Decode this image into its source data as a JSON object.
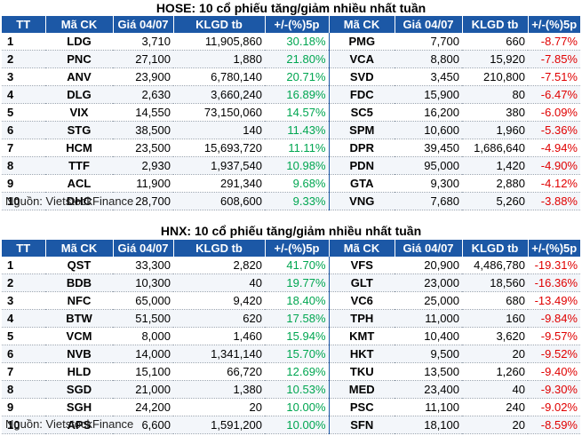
{
  "tables": [
    {
      "title": "HOSE: 10 cổ phiếu tăng/giảm nhiều nhất tuần",
      "headers": [
        "TT",
        "Mã CK",
        "Giá 04/07",
        "KLGD tb",
        "+/-(%)5p",
        "Mã CK",
        "Giá 04/07",
        "KLGD tb",
        "+/-(%)5p"
      ],
      "rows": [
        {
          "tt": "1",
          "code_up": "LDG",
          "price_up": "3,710",
          "vol_up": "11,905,860",
          "pct_up": "30.18%",
          "code_dn": "PMG",
          "price_dn": "7,700",
          "vol_dn": "660",
          "pct_dn": "-8.77%"
        },
        {
          "tt": "2",
          "code_up": "PNC",
          "price_up": "27,100",
          "vol_up": "1,880",
          "pct_up": "21.80%",
          "code_dn": "VCA",
          "price_dn": "8,800",
          "vol_dn": "15,920",
          "pct_dn": "-7.85%"
        },
        {
          "tt": "3",
          "code_up": "ANV",
          "price_up": "23,900",
          "vol_up": "6,780,140",
          "pct_up": "20.71%",
          "code_dn": "SVD",
          "price_dn": "3,450",
          "vol_dn": "210,800",
          "pct_dn": "-7.51%"
        },
        {
          "tt": "4",
          "code_up": "DLG",
          "price_up": "2,630",
          "vol_up": "3,660,240",
          "pct_up": "16.89%",
          "code_dn": "FDC",
          "price_dn": "15,900",
          "vol_dn": "80",
          "pct_dn": "-6.47%"
        },
        {
          "tt": "5",
          "code_up": "VIX",
          "price_up": "14,550",
          "vol_up": "73,150,060",
          "pct_up": "14.57%",
          "code_dn": "SC5",
          "price_dn": "16,200",
          "vol_dn": "380",
          "pct_dn": "-6.09%"
        },
        {
          "tt": "6",
          "code_up": "STG",
          "price_up": "38,500",
          "vol_up": "140",
          "pct_up": "11.43%",
          "code_dn": "SPM",
          "price_dn": "10,600",
          "vol_dn": "1,960",
          "pct_dn": "-5.36%"
        },
        {
          "tt": "7",
          "code_up": "HCM",
          "price_up": "23,500",
          "vol_up": "15,693,720",
          "pct_up": "11.11%",
          "code_dn": "DPR",
          "price_dn": "39,450",
          "vol_dn": "1,686,640",
          "pct_dn": "-4.94%"
        },
        {
          "tt": "8",
          "code_up": "TTF",
          "price_up": "2,930",
          "vol_up": "1,937,540",
          "pct_up": "10.98%",
          "code_dn": "PDN",
          "price_dn": "95,000",
          "vol_dn": "1,420",
          "pct_dn": "-4.90%"
        },
        {
          "tt": "9",
          "code_up": "ACL",
          "price_up": "11,900",
          "vol_up": "291,340",
          "pct_up": "9.68%",
          "code_dn": "GTA",
          "price_dn": "9,300",
          "vol_dn": "2,880",
          "pct_dn": "-4.12%"
        },
        {
          "tt": "10",
          "code_up": "DHC",
          "price_up": "28,700",
          "vol_up": "608,600",
          "pct_up": "9.33%",
          "code_dn": "VNG",
          "price_dn": "7,680",
          "vol_dn": "5,260",
          "pct_dn": "-3.88%"
        }
      ],
      "source": "Nguồn: VietstockFinance"
    },
    {
      "title": "HNX: 10 cổ phiếu tăng/giảm nhiều nhất tuần",
      "headers": [
        "TT",
        "Mã CK",
        "Giá 04/07",
        "KLGD tb",
        "+/-(%)5p",
        "Mã CK",
        "Giá 04/07",
        "KLGD tb",
        "+/-(%)5p"
      ],
      "rows": [
        {
          "tt": "1",
          "code_up": "QST",
          "price_up": "33,300",
          "vol_up": "2,820",
          "pct_up": "41.70%",
          "code_dn": "VFS",
          "price_dn": "20,900",
          "vol_dn": "4,486,780",
          "pct_dn": "-19.31%"
        },
        {
          "tt": "2",
          "code_up": "BDB",
          "price_up": "10,300",
          "vol_up": "40",
          "pct_up": "19.77%",
          "code_dn": "GLT",
          "price_dn": "23,000",
          "vol_dn": "18,560",
          "pct_dn": "-16.36%"
        },
        {
          "tt": "3",
          "code_up": "NFC",
          "price_up": "65,000",
          "vol_up": "9,420",
          "pct_up": "18.40%",
          "code_dn": "VC6",
          "price_dn": "25,000",
          "vol_dn": "680",
          "pct_dn": "-13.49%"
        },
        {
          "tt": "4",
          "code_up": "BTW",
          "price_up": "51,500",
          "vol_up": "620",
          "pct_up": "17.58%",
          "code_dn": "TPH",
          "price_dn": "11,000",
          "vol_dn": "160",
          "pct_dn": "-9.84%"
        },
        {
          "tt": "5",
          "code_up": "VCM",
          "price_up": "8,000",
          "vol_up": "1,460",
          "pct_up": "15.94%",
          "code_dn": "KMT",
          "price_dn": "10,400",
          "vol_dn": "3,620",
          "pct_dn": "-9.57%"
        },
        {
          "tt": "6",
          "code_up": "NVB",
          "price_up": "14,000",
          "vol_up": "1,341,140",
          "pct_up": "15.70%",
          "code_dn": "HKT",
          "price_dn": "9,500",
          "vol_dn": "20",
          "pct_dn": "-9.52%"
        },
        {
          "tt": "7",
          "code_up": "HLD",
          "price_up": "15,100",
          "vol_up": "66,720",
          "pct_up": "12.69%",
          "code_dn": "TKU",
          "price_dn": "13,500",
          "vol_dn": "1,260",
          "pct_dn": "-9.40%"
        },
        {
          "tt": "8",
          "code_up": "SGD",
          "price_up": "21,000",
          "vol_up": "1,380",
          "pct_up": "10.53%",
          "code_dn": "MED",
          "price_dn": "23,400",
          "vol_dn": "40",
          "pct_dn": "-9.30%"
        },
        {
          "tt": "9",
          "code_up": "SGH",
          "price_up": "24,200",
          "vol_up": "20",
          "pct_up": "10.00%",
          "code_dn": "PSC",
          "price_dn": "11,100",
          "vol_dn": "240",
          "pct_dn": "-9.02%"
        },
        {
          "tt": "10",
          "code_up": "APS",
          "price_up": "6,600",
          "vol_up": "1,591,200",
          "pct_up": "10.00%",
          "code_dn": "SFN",
          "price_dn": "18,100",
          "vol_dn": "20",
          "pct_dn": "-8.59%"
        }
      ],
      "source": "Nguồn: VietstockFinance"
    }
  ],
  "colors": {
    "header_bg": "#1c58a6",
    "up": "#00a651",
    "down": "#e00000"
  }
}
